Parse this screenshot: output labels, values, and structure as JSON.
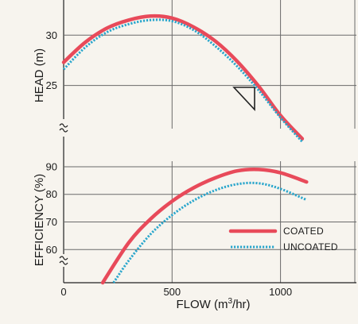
{
  "chart_data": {
    "type": "line",
    "xlabel": "FLOW (m",
    "xlabel_sup": "3",
    "xlabel_end": "/hr)",
    "xlim": [
      0,
      1350
    ],
    "x_ticks": [
      0,
      500,
      1000
    ],
    "x_tick_labels": [
      "0",
      "500",
      "1000"
    ],
    "grid": true,
    "legend_position": "bottom-right",
    "colors": {
      "coated": "#e84a5a",
      "uncoated": "#2aa6cc"
    },
    "panels": [
      {
        "name": "head",
        "ylabel": "HEAD (m)",
        "ylim": [
          20.7,
          33.5
        ],
        "y_ticks": [
          25,
          30
        ],
        "y_tick_labels": [
          "25",
          "30"
        ],
        "axis_break": true,
        "series": [
          {
            "name": "COATED",
            "style": "solid",
            "x": [
              0,
              100,
              200,
              300,
              400,
              500,
              600,
              700,
              800,
              900,
              1000,
              1100
            ],
            "y": [
              27.3,
              29.3,
              30.7,
              31.5,
              31.9,
              31.7,
              30.8,
              29.4,
              27.4,
              24.9,
              22.0,
              19.7
            ]
          },
          {
            "name": "UNCOATED",
            "style": "dotted",
            "x": [
              0,
              100,
              200,
              300,
              400,
              500,
              600,
              700,
              800,
              900,
              1000,
              1100
            ],
            "y": [
              26.6,
              28.8,
              30.3,
              31.1,
              31.5,
              31.4,
              30.5,
              28.9,
              26.9,
              24.5,
              21.8,
              19.4
            ]
          }
        ]
      },
      {
        "name": "efficiency",
        "ylabel": "EFFICIENCY (%)",
        "ylim": [
          48,
          92
        ],
        "y_ticks": [
          60,
          70,
          80,
          90
        ],
        "y_tick_labels": [
          "60",
          "70",
          "80",
          "90"
        ],
        "axis_break": true,
        "series": [
          {
            "name": "COATED",
            "style": "solid",
            "x": [
              180,
              300,
              400,
              500,
              600,
              700,
              800,
              900,
              1000,
              1120
            ],
            "y": [
              48.0,
              62.5,
              71.0,
              77.5,
              82.4,
              86.0,
              88.5,
              89.0,
              87.8,
              84.5
            ]
          },
          {
            "name": "UNCOATED",
            "style": "dotted",
            "x": [
              230,
              300,
              400,
              500,
              600,
              700,
              800,
              900,
              1000,
              1120
            ],
            "y": [
              48.0,
              56.0,
              65.5,
              72.5,
              77.8,
              81.5,
              83.7,
              84.0,
              82.0,
              78.0
            ]
          }
        ]
      }
    ]
  }
}
